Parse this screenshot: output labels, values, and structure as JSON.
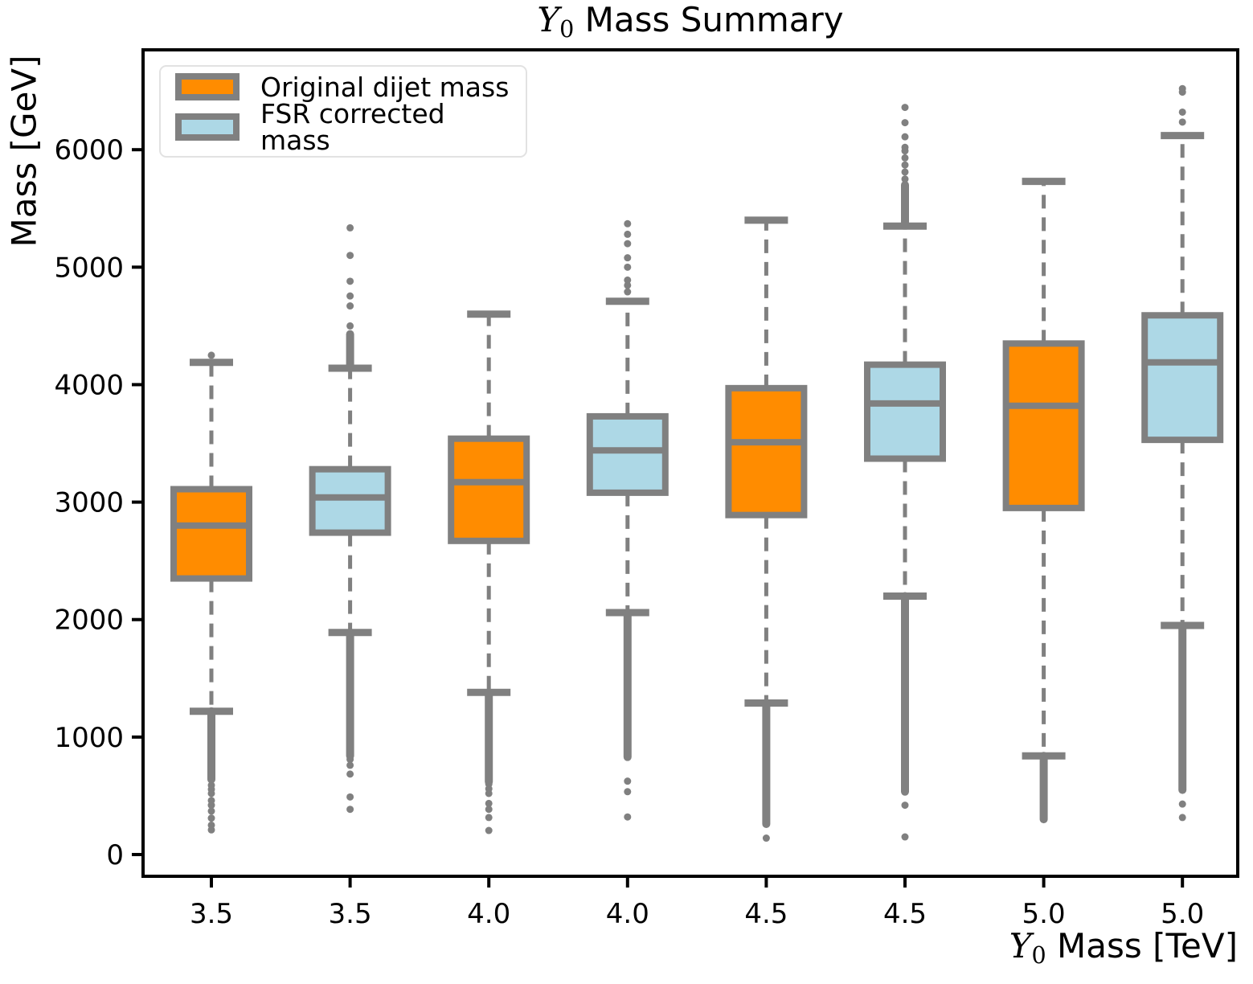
{
  "header": {
    "title_y": "Y",
    "title_sub": "0",
    "title_rest": " Mass Summary"
  },
  "axes": {
    "ylabel": "Mass [GeV]",
    "xlabel_y": "Y",
    "xlabel_sub": "0",
    "xlabel_rest": " Mass [TeV]"
  },
  "chart_data": {
    "type": "boxplot",
    "title": "Y0 Mass Summary",
    "xlabel": "Y0 Mass [TeV]",
    "ylabel": "Mass [GeV]",
    "ylim": [
      -185,
      6850
    ],
    "yticks": [
      0,
      1000,
      2000,
      3000,
      4000,
      5000,
      6000
    ],
    "categories": [
      "3.5",
      "3.5",
      "4.0",
      "4.0",
      "4.5",
      "4.5",
      "5.0",
      "5.0"
    ],
    "grid": false,
    "legend_position": "upper left",
    "legend": [
      {
        "label": "Original dijet mass",
        "color_key": "orange"
      },
      {
        "label": "FSR corrected mass",
        "color_key": "blue"
      }
    ],
    "colors": {
      "orange": "#FF8C00",
      "blue": "#ADD8E6",
      "box_edge": "#808080",
      "whisker": "#808080",
      "outlier": "#808080",
      "axis": "#000000"
    },
    "boxes": [
      {
        "category": "3.5",
        "series": "Original dijet mass",
        "color_key": "orange",
        "whisker_low": 1220,
        "q1": 2350,
        "median": 2800,
        "q3": 3110,
        "whisker_high": 4190,
        "low_column": [
          1220,
          640
        ],
        "low_dots": [
          590,
          555,
          520,
          460,
          420,
          370,
          310,
          250,
          210
        ],
        "high_column": null,
        "high_dots": [
          4250
        ]
      },
      {
        "category": "3.5",
        "series": "FSR corrected mass",
        "color_key": "blue",
        "whisker_low": 1890,
        "q1": 2740,
        "median": 3040,
        "q3": 3280,
        "whisker_high": 4140,
        "low_column": [
          1890,
          840
        ],
        "low_dots": [
          810,
          760,
          685,
          490,
          385
        ],
        "high_column": [
          4150,
          4430
        ],
        "high_dots": [
          4500,
          4670,
          4755,
          4880,
          5100,
          5335
        ]
      },
      {
        "category": "4.0",
        "series": "Original dijet mass",
        "color_key": "orange",
        "whisker_low": 1380,
        "q1": 2670,
        "median": 3170,
        "q3": 3540,
        "whisker_high": 4600,
        "low_column": [
          1380,
          620
        ],
        "low_dots": [
          600,
          560,
          520,
          435,
          385,
          315,
          205
        ],
        "high_column": null,
        "high_dots": []
      },
      {
        "category": "4.0",
        "series": "FSR corrected mass",
        "color_key": "blue",
        "whisker_low": 2060,
        "q1": 3080,
        "median": 3440,
        "q3": 3730,
        "whisker_high": 4710,
        "low_column": [
          2060,
          830
        ],
        "low_dots": [
          625,
          535,
          320
        ],
        "high_column": null,
        "high_dots": [
          4790,
          4845,
          4890,
          5000,
          5080,
          5200,
          5280,
          5370
        ]
      },
      {
        "category": "4.5",
        "series": "Original dijet mass",
        "color_key": "orange",
        "whisker_low": 1290,
        "q1": 2890,
        "median": 3510,
        "q3": 3970,
        "whisker_high": 5400,
        "low_column": [
          1290,
          260
        ],
        "low_dots": [
          140
        ],
        "high_column": null,
        "high_dots": []
      },
      {
        "category": "4.5",
        "series": "FSR corrected mass",
        "color_key": "blue",
        "whisker_low": 2200,
        "q1": 3370,
        "median": 3840,
        "q3": 4170,
        "whisker_high": 5350,
        "low_column": [
          2200,
          535
        ],
        "low_dots": [
          420,
          150
        ],
        "high_column": [
          5360,
          5700
        ],
        "high_dots": [
          5750,
          5810,
          5870,
          5930,
          5990,
          6020,
          6110,
          6230,
          6360
        ]
      },
      {
        "category": "5.0",
        "series": "Original dijet mass",
        "color_key": "orange",
        "whisker_low": 840,
        "q1": 2950,
        "median": 3820,
        "q3": 4350,
        "whisker_high": 5730,
        "low_column": [
          840,
          300
        ],
        "low_dots": [],
        "high_column": null,
        "high_dots": []
      },
      {
        "category": "5.0",
        "series": "FSR corrected mass",
        "color_key": "blue",
        "whisker_low": 1950,
        "q1": 3530,
        "median": 4190,
        "q3": 4590,
        "whisker_high": 6120,
        "low_column": [
          1950,
          550
        ],
        "low_dots": [
          430,
          315
        ],
        "high_column": null,
        "high_dots": [
          6235,
          6320,
          6490,
          6520
        ]
      }
    ]
  }
}
